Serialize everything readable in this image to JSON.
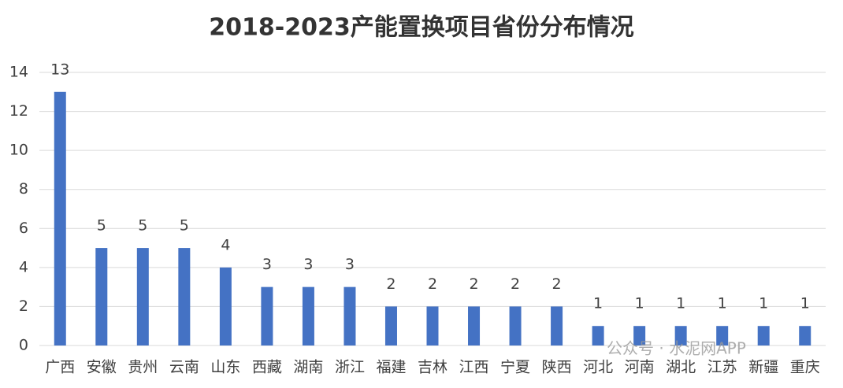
{
  "chart_data": {
    "type": "bar",
    "title": "2018-2023产能置换项目省份分布情况",
    "categories": [
      "广西",
      "安徽",
      "贵州",
      "云南",
      "山东",
      "西藏",
      "湖南",
      "浙江",
      "福建",
      "吉林",
      "江西",
      "宁夏",
      "陕西",
      "河北",
      "河南",
      "湖北",
      "江苏",
      "新疆",
      "重庆"
    ],
    "values": [
      13,
      5,
      5,
      5,
      4,
      3,
      3,
      3,
      2,
      2,
      2,
      2,
      2,
      1,
      1,
      1,
      1,
      1,
      1
    ],
    "color": "#4472c4",
    "ylim": [
      0,
      14
    ],
    "yticks": [
      0,
      2,
      4,
      6,
      8,
      10,
      12,
      14
    ],
    "grid": true,
    "watermark": "公众号 · 水泥网APP"
  }
}
